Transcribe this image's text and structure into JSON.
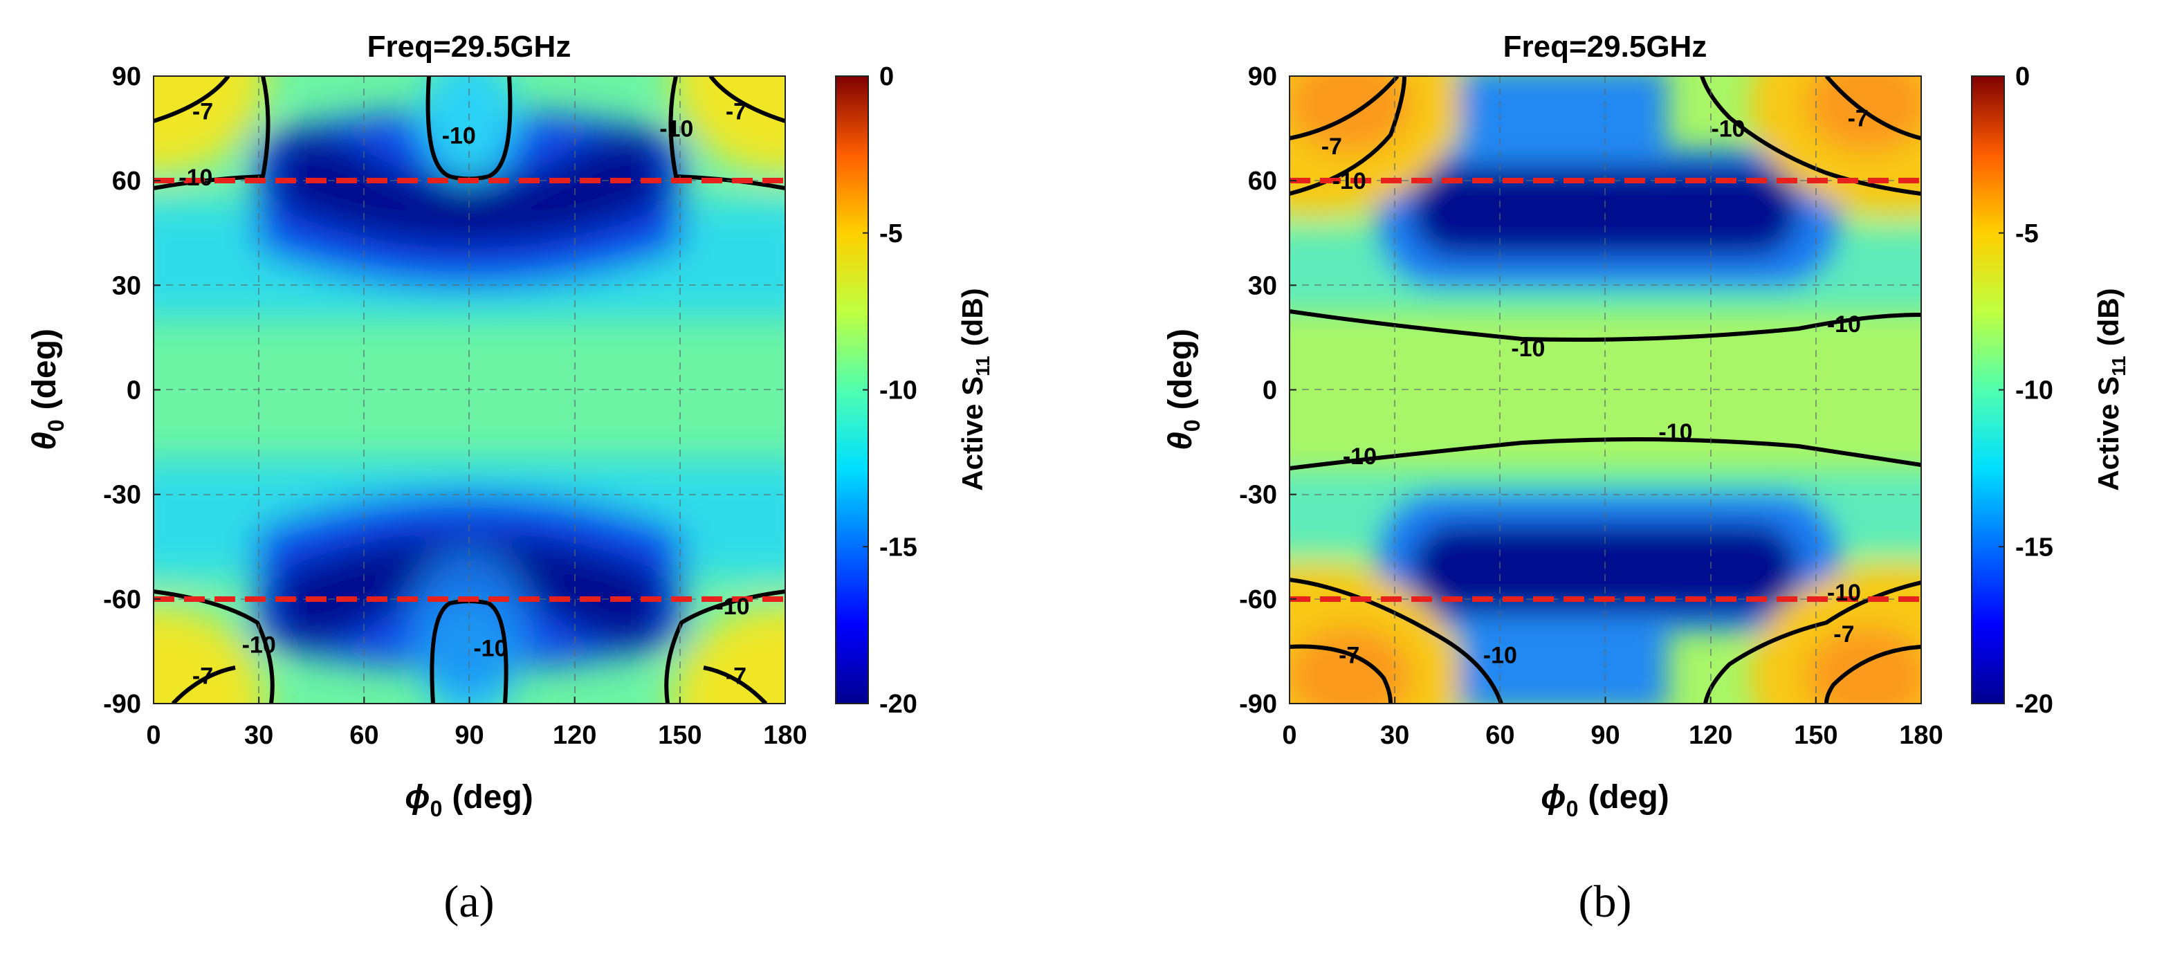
{
  "chart_data": [
    {
      "panel": "(a)",
      "type": "heatmap",
      "title": "Freq=29.5GHz",
      "xlabel": "ϕ",
      "xlabel_sub": "0",
      "xlabel_unit": "(deg)",
      "ylabel": "θ",
      "ylabel_sub": "0",
      "ylabel_unit": "(deg)",
      "colorbar_label": "Active S",
      "colorbar_sub": "11",
      "colorbar_unit": "(dB)",
      "xlim": [
        0,
        180
      ],
      "ylim": [
        -90,
        90
      ],
      "clim": [
        -20,
        0
      ],
      "xticks": [
        0,
        30,
        60,
        90,
        120,
        150,
        180
      ],
      "yticks": [
        90,
        60,
        30,
        0,
        -30,
        -60,
        -90
      ],
      "cticks": [
        0,
        -5,
        -10,
        -15,
        -20
      ],
      "colormap": "jet",
      "grid": true,
      "scan_limits_deg": [
        60,
        -60
      ],
      "scan_limit_color": "#e8211d",
      "contour_levels": [
        -10,
        -7
      ],
      "contour_labels": [
        {
          "text": "-7",
          "x": 14,
          "y": 80
        },
        {
          "text": "-7",
          "x": 166,
          "y": 80
        },
        {
          "text": "-7",
          "x": 14,
          "y": -82
        },
        {
          "text": "-7",
          "x": 166,
          "y": -82
        },
        {
          "text": "-10",
          "x": 87,
          "y": 73
        },
        {
          "text": "-10",
          "x": 149,
          "y": 75
        },
        {
          "text": "-10",
          "x": 12,
          "y": 61
        },
        {
          "text": "-10",
          "x": 30,
          "y": -73
        },
        {
          "text": "-10",
          "x": 96,
          "y": -74
        },
        {
          "text": "-10",
          "x": 165,
          "y": -62
        }
      ]
    },
    {
      "panel": "(b)",
      "type": "heatmap",
      "title": "Freq=29.5GHz",
      "xlabel": "ϕ",
      "xlabel_sub": "0",
      "xlabel_unit": "(deg)",
      "ylabel": "θ",
      "ylabel_sub": "0",
      "ylabel_unit": "(deg)",
      "colorbar_label": "Active S",
      "colorbar_sub": "11",
      "colorbar_unit": "(dB)",
      "xlim": [
        0,
        180
      ],
      "ylim": [
        -90,
        90
      ],
      "clim": [
        -20,
        0
      ],
      "xticks": [
        0,
        30,
        60,
        90,
        120,
        150,
        180
      ],
      "yticks": [
        90,
        60,
        30,
        0,
        -30,
        -60,
        -90
      ],
      "cticks": [
        0,
        -5,
        -10,
        -15,
        -20
      ],
      "colormap": "jet",
      "grid": true,
      "scan_limits_deg": [
        60,
        -60
      ],
      "scan_limit_color": "#e8211d",
      "contour_levels": [
        -10,
        -7
      ],
      "contour_labels": [
        {
          "text": "-7",
          "x": 12,
          "y": 70
        },
        {
          "text": "-7",
          "x": 162,
          "y": 78
        },
        {
          "text": "-10",
          "x": 17,
          "y": 60
        },
        {
          "text": "-10",
          "x": 125,
          "y": 75
        },
        {
          "text": "-10",
          "x": 158,
          "y": 19
        },
        {
          "text": "-10",
          "x": 68,
          "y": 12
        },
        {
          "text": "-10",
          "x": 110,
          "y": -12
        },
        {
          "text": "-10",
          "x": 20,
          "y": -19
        },
        {
          "text": "-10",
          "x": 158,
          "y": -58
        },
        {
          "text": "-10",
          "x": 60,
          "y": -76
        },
        {
          "text": "-7",
          "x": 17,
          "y": -76
        },
        {
          "text": "-7",
          "x": 158,
          "y": -70
        }
      ]
    }
  ]
}
